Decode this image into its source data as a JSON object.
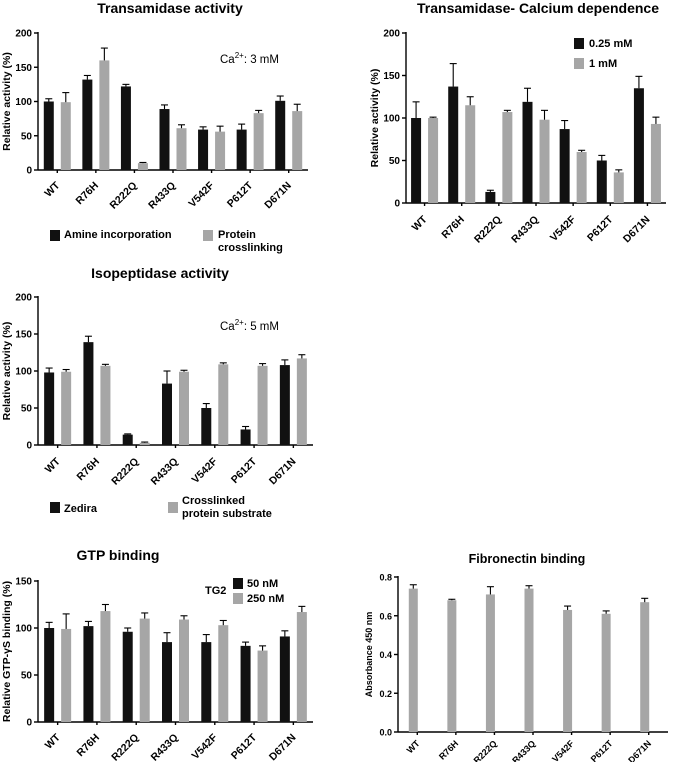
{
  "colors": {
    "dark": "#111111",
    "light": "#a6a6a6",
    "axis": "#000000"
  },
  "chart_data": [
    {
      "id": "transamidase",
      "type": "bar",
      "title": "Transamidase activity",
      "ylabel": "Relative activity (%)",
      "xlabel": "",
      "ylim": [
        0,
        200
      ],
      "yticks": [
        0,
        50,
        100,
        150,
        200
      ],
      "categories": [
        "WT",
        "R76H",
        "R222Q",
        "R433Q",
        "V542F",
        "P612T",
        "D671N"
      ],
      "annotation": {
        "base": "Ca",
        "sup": "2+",
        "rest": ": 3 mM"
      },
      "series": [
        {
          "name": "Amine incorporation",
          "color": "dark",
          "values": [
            100,
            132,
            122,
            89,
            59,
            59,
            101
          ],
          "errors": [
            4,
            6,
            3,
            6,
            4,
            8,
            7
          ]
        },
        {
          "name": "Protein crosslinking",
          "color": "light",
          "values": [
            99,
            160,
            10,
            61,
            56,
            83,
            86
          ],
          "errors": [
            14,
            18,
            1,
            5,
            8,
            4,
            10
          ]
        }
      ]
    },
    {
      "id": "calcium",
      "type": "bar",
      "title": "Transamidase- Calcium dependence",
      "ylabel": "Relative activity (%)",
      "xlabel": "",
      "ylim": [
        0,
        200
      ],
      "yticks": [
        0,
        50,
        100,
        150,
        200
      ],
      "categories": [
        "WT",
        "R76H",
        "R222Q",
        "R433Q",
        "V542F",
        "P612T",
        "D671N"
      ],
      "legend_title": "",
      "series": [
        {
          "name": "0.25 mM",
          "color": "dark",
          "values": [
            100,
            137,
            13,
            119,
            87,
            50,
            135
          ],
          "errors": [
            19,
            27,
            2,
            16,
            10,
            6,
            14
          ]
        },
        {
          "name": "1 mM",
          "color": "light",
          "values": [
            100,
            115,
            107,
            98,
            60,
            36,
            93
          ],
          "errors": [
            1,
            10,
            2,
            11,
            2,
            3,
            8
          ]
        }
      ]
    },
    {
      "id": "isopeptidase",
      "type": "bar",
      "title": "Isopeptidase activity",
      "ylabel": "Relative activity (%)",
      "xlabel": "",
      "ylim": [
        0,
        200
      ],
      "yticks": [
        0,
        50,
        100,
        150,
        200
      ],
      "categories": [
        "WT",
        "R76H",
        "R222Q",
        "R433Q",
        "V542F",
        "P612T",
        "D671N"
      ],
      "annotation": {
        "base": "Ca",
        "sup": "2+",
        "rest": ": 5 mM"
      },
      "series": [
        {
          "name": "Zedira",
          "color": "dark",
          "values": [
            98,
            139,
            14,
            83,
            50,
            21,
            108
          ],
          "errors": [
            6,
            8,
            1,
            17,
            6,
            4,
            7
          ]
        },
        {
          "name": "Crosslinked protein substrate",
          "color": "light",
          "values": [
            99,
            107,
            3,
            99,
            109,
            107,
            117
          ],
          "errors": [
            3,
            2,
            1,
            2,
            2,
            3,
            5
          ]
        }
      ]
    },
    {
      "id": "gtp",
      "type": "bar",
      "title": "GTP binding",
      "ylabel": "Relative GTP-γS binding (%)",
      "xlabel": "",
      "ylim": [
        0,
        150
      ],
      "yticks": [
        0,
        50,
        100,
        150
      ],
      "categories": [
        "WT",
        "R76H",
        "R222Q",
        "R433Q",
        "V542F",
        "P612T",
        "D671N"
      ],
      "legend_title": "TG2",
      "series": [
        {
          "name": "50 nM",
          "color": "dark",
          "values": [
            100,
            102,
            96,
            85,
            85,
            81,
            91
          ],
          "errors": [
            6,
            5,
            4,
            10,
            8,
            4,
            6
          ]
        },
        {
          "name": "250 nM",
          "color": "light",
          "values": [
            99,
            118,
            110,
            109,
            103,
            76,
            117
          ],
          "errors": [
            16,
            7,
            6,
            4,
            5,
            5,
            6
          ]
        }
      ]
    },
    {
      "id": "fibronectin",
      "type": "bar",
      "title": "Fibronectin binding",
      "ylabel": "Absorbance 450 nm",
      "xlabel": "",
      "ylim": [
        0,
        0.8
      ],
      "yticks": [
        0.0,
        0.2,
        0.4,
        0.6,
        0.8
      ],
      "categories": [
        "WT",
        "R76H",
        "R222Q",
        "R433Q",
        "V542F",
        "P612T",
        "D671N"
      ],
      "series": [
        {
          "name": "Absorbance",
          "color": "light",
          "values": [
            0.74,
            0.68,
            0.71,
            0.74,
            0.63,
            0.61,
            0.67
          ],
          "errors": [
            0.02,
            0.005,
            0.04,
            0.015,
            0.02,
            0.015,
            0.02
          ]
        }
      ]
    }
  ]
}
